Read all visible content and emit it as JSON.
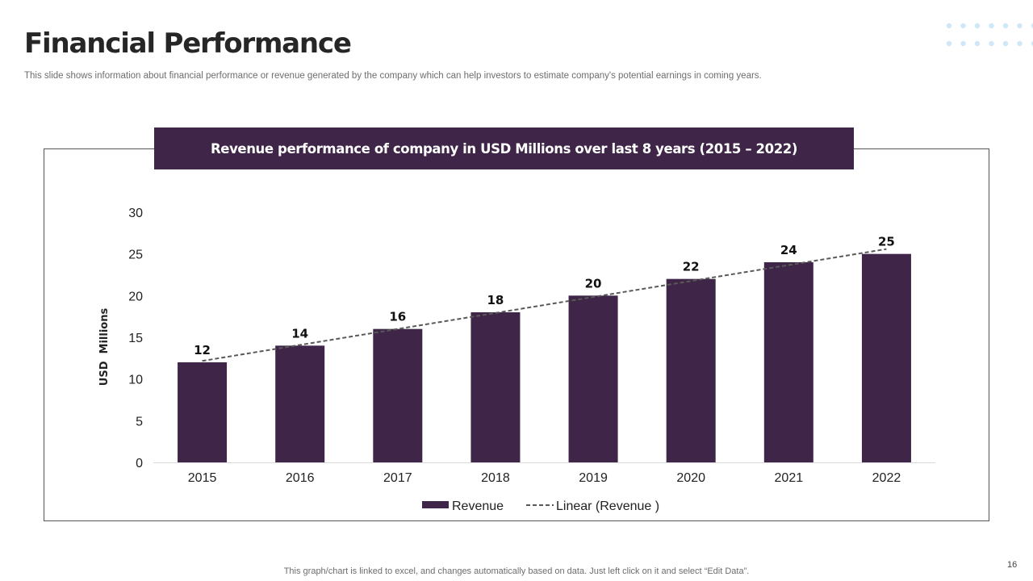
{
  "page": {
    "title": "Financial Performance",
    "subtitle": "This slide shows information about financial performance or revenue generated by the company which can help investors to estimate company's potential earnings in coming years.",
    "footer": "This graph/chart is linked to excel,  and changes automatically based on data. Just left click on it and select “Edit Data”.",
    "page_number": "16"
  },
  "colors": {
    "bar": "#3f2547",
    "banner": "#3f2547",
    "trend": "#595959",
    "dots": "#cfe7f7"
  },
  "chart_data": {
    "type": "bar",
    "title": "Revenue performance of company in USD Millions over last 8 years (2015 – 2022)",
    "categories": [
      "2015",
      "2016",
      "2017",
      "2018",
      "2019",
      "2020",
      "2021",
      "2022"
    ],
    "series": [
      {
        "name": "Revenue",
        "values": [
          12,
          14,
          16,
          18,
          20,
          22,
          24,
          25
        ]
      }
    ],
    "trendline": {
      "name": "Linear (Revenue )",
      "type": "linear",
      "style": "dashed"
    },
    "ylabel": "USD  Millions",
    "xlabel": "",
    "ylim": [
      0,
      30
    ],
    "yticks": [
      0,
      5,
      10,
      15,
      20,
      25,
      30
    ],
    "legend": [
      "Revenue",
      "Linear (Revenue )"
    ],
    "legend_position": "bottom",
    "data_labels": true,
    "grid": false
  }
}
